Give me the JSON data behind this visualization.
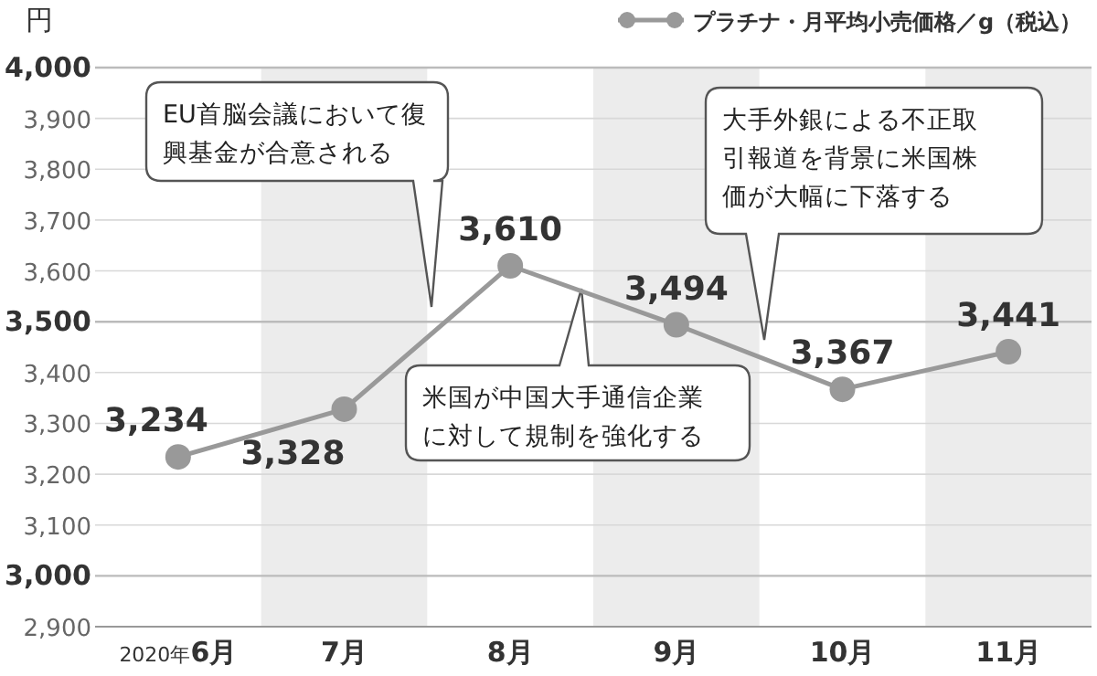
{
  "chart_data": {
    "type": "line",
    "categories": [
      "2020年6月",
      "7月",
      "8月",
      "9月",
      "10月",
      "11月"
    ],
    "series": [
      {
        "name": "プラチナ・月平均小売価格／g（税込）",
        "color": "#999999",
        "values": [
          3234,
          3328,
          3610,
          3494,
          3367,
          3441
        ],
        "value_labels": [
          "3,234",
          "3,328",
          "3,610",
          "3,494",
          "3,367",
          "3,441"
        ]
      }
    ],
    "ylabel": "円",
    "ylim": [
      2900,
      4000
    ],
    "yticks": [
      {
        "value": 2900,
        "label": "2,900"
      },
      {
        "value": 3000,
        "label": "3,000"
      },
      {
        "value": 3100,
        "label": "3,100"
      },
      {
        "value": 3200,
        "label": "3,200"
      },
      {
        "value": 3300,
        "label": "3,300"
      },
      {
        "value": 3400,
        "label": "3,400"
      },
      {
        "value": 3500,
        "label": "3,500"
      },
      {
        "value": 3600,
        "label": "3,600"
      },
      {
        "value": 3700,
        "label": "3,700"
      },
      {
        "value": 3800,
        "label": "3,800"
      },
      {
        "value": 3900,
        "label": "3,900"
      },
      {
        "value": 4000,
        "label": "4,000"
      }
    ],
    "grid": "y",
    "marker": "circle",
    "line_style": "solid",
    "legend": "top right",
    "bands": [
      {
        "axis": "x",
        "from": "7月",
        "to": "7月",
        "color": "#ececec"
      },
      {
        "axis": "x",
        "from": "9月",
        "to": "9月",
        "color": "#ececec"
      },
      {
        "axis": "x",
        "from": "11月",
        "to": "11月",
        "color": "#ececec"
      }
    ],
    "annotations": [
      "EU首脳会議において復興基金が合意される",
      "米国が中国大手通信企業に対して規制を強化する",
      "大手外銀による不正取引報道を背景に米国株価が大幅に下落する"
    ]
  }
}
